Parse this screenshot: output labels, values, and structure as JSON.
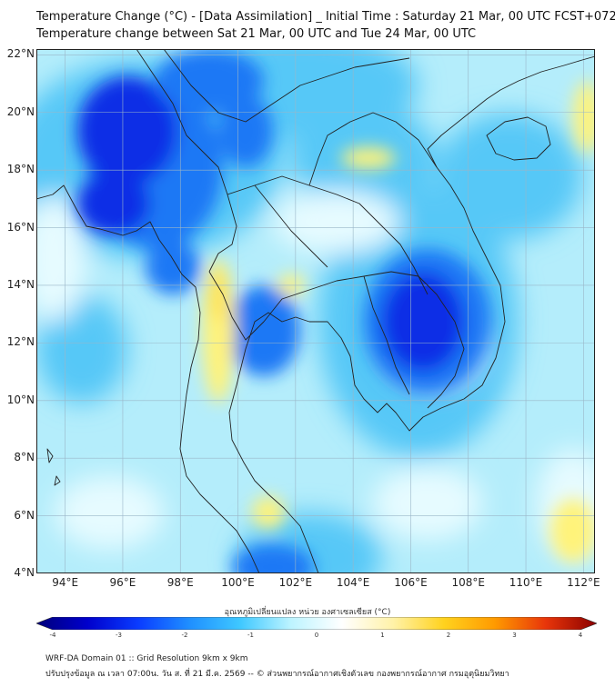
{
  "title_line1": "Temperature Change (°C) - [Data Assimilation] _ Initial Time : Saturday 21 Mar, 00 UTC FCST+072",
  "title_line2": "Temperature change between Sat 21 Mar, 00 UTC and Tue 24 Mar, 00 UTC",
  "lat_ticks": [
    "22°N",
    "20°N",
    "18°N",
    "16°N",
    "14°N",
    "12°N",
    "10°N",
    "8°N",
    "6°N",
    "4°N"
  ],
  "lon_ticks": [
    "94°E",
    "96°E",
    "98°E",
    "100°E",
    "102°E",
    "104°E",
    "106°E",
    "108°E",
    "110°E",
    "112°E"
  ],
  "colorbar": {
    "label": "อุณหภูมิเปลี่ยนแปลง หน่วย องศาเซลเซียส (°C)",
    "ticks": [
      "-4",
      "-3",
      "-2",
      "-1",
      "0",
      "1",
      "2",
      "3",
      "4"
    ],
    "min": -4,
    "max": 4,
    "colors": [
      "#00007a",
      "#0000cc",
      "#0a3cff",
      "#1f8fff",
      "#3fc8ff",
      "#bdf4ff",
      "#ffffff",
      "#fff2a8",
      "#ffd21e",
      "#ff9a00",
      "#e8350a",
      "#8a0000"
    ]
  },
  "map": {
    "lat_range": [
      4,
      22.2
    ],
    "lon_range": [
      93,
      112.4
    ],
    "field_colors": {
      "background": "#b4edfb",
      "strong_cool": "#0b2fe6",
      "cool": "#1e78f5",
      "moderate": "#56c8f7",
      "light": "#e6fbff",
      "warm": "#fff37a",
      "warm_strong": "#ffe45a"
    }
  },
  "footer_line1": "WRF-DA Domain 01 :: Grid Resolution 9km x 9km",
  "footer_line2": "ปรับปรุงข้อมูล ณ เวลา 07:00น. วัน ส. ที่ 21 มี.ค. 2569 -- © ส่วนพยากรณ์อากาศเชิงตัวเลข กองพยากรณ์อากาศ กรมอุตุนิยมวิทยา"
}
